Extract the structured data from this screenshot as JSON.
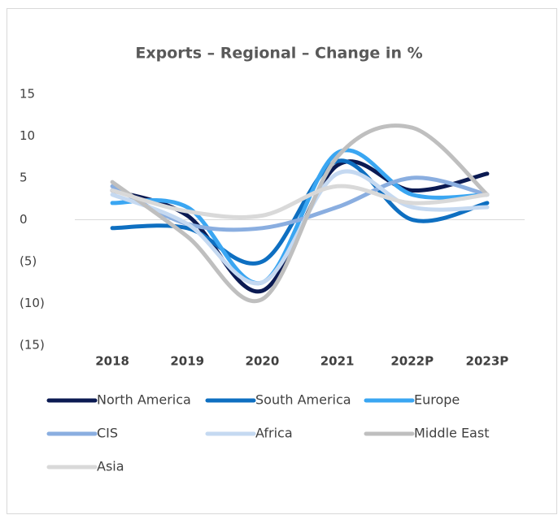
{
  "chart_data": {
    "type": "line",
    "title": "Exports – Regional – Change in %",
    "categories": [
      "2018",
      "2019",
      "2020",
      "2021",
      "2022P",
      "2023P"
    ],
    "series": [
      {
        "name": "North America",
        "color": "#0b1a52",
        "values": [
          3.5,
          0.5,
          -8.5,
          6.5,
          3.5,
          5.5
        ]
      },
      {
        "name": "South America",
        "color": "#0e6fc1",
        "values": [
          -1,
          -1,
          -5,
          7,
          0,
          2
        ]
      },
      {
        "name": "Europe",
        "color": "#3aa6f2",
        "values": [
          2,
          1.5,
          -7.5,
          8,
          3,
          3
        ]
      },
      {
        "name": "CIS",
        "color": "#8aaee0",
        "values": [
          4,
          -0.5,
          -1,
          1.5,
          5,
          3
        ]
      },
      {
        "name": "Africa",
        "color": "#c5d9f1",
        "values": [
          3,
          -0.5,
          -7.5,
          5.5,
          1.5,
          1.5
        ]
      },
      {
        "name": "Middle East",
        "color": "#bfbfbf",
        "values": [
          4.5,
          -2,
          -9.5,
          7.5,
          11,
          3
        ]
      },
      {
        "name": "Asia",
        "color": "#d9d9d9",
        "values": [
          3.5,
          1,
          0.5,
          4,
          2,
          3
        ]
      }
    ],
    "ylim": [
      -15,
      15
    ],
    "yticks": [
      {
        "value": -15,
        "label": "(15)"
      },
      {
        "value": -10,
        "label": "(10)"
      },
      {
        "value": -5,
        "label": "(5)"
      },
      0,
      5,
      10,
      15
    ],
    "smooth": true
  }
}
